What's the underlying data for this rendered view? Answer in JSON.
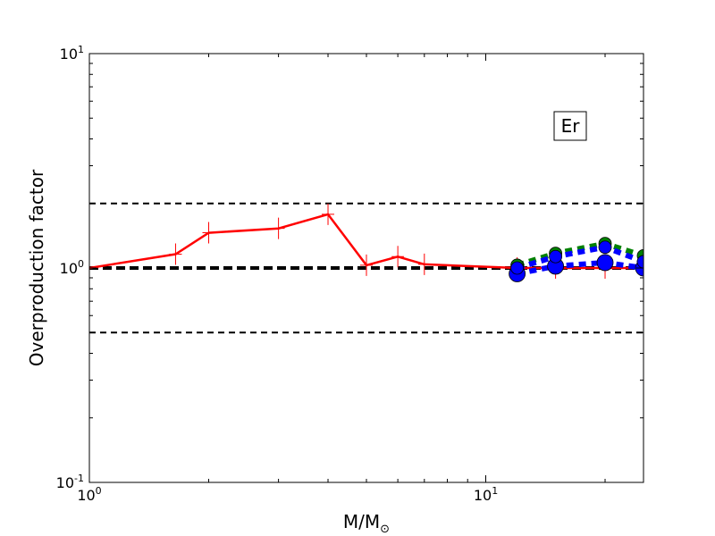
{
  "chart_data": {
    "type": "line",
    "xscale": "log",
    "yscale": "log",
    "xlim": [
      1,
      25
    ],
    "ylim": [
      0.1,
      10
    ],
    "xlabel": "M/M",
    "xlabel_sub": "⊙",
    "ylabel": "Overproduction factor",
    "x_ticks": [
      {
        "value": 1,
        "base": "10",
        "exp": "0"
      },
      {
        "value": 10,
        "base": "10",
        "exp": "1"
      }
    ],
    "y_ticks": [
      {
        "value": 0.1,
        "base": "10",
        "exp": "-1"
      },
      {
        "value": 1,
        "base": "10",
        "exp": "0"
      },
      {
        "value": 10,
        "base": "10",
        "exp": "1"
      }
    ],
    "annotation": "Er",
    "reference_lines": [
      {
        "y": 2.0,
        "style": "dashed",
        "color": "#000000"
      },
      {
        "y": 1.0,
        "style": "dashed-thick",
        "color": "#000000"
      },
      {
        "y": 0.5,
        "style": "dashed",
        "color": "#000000"
      }
    ],
    "series": [
      {
        "style": "solid",
        "color": "#ff0000",
        "marker": "plus",
        "x": [
          1.0,
          1.65,
          2.0,
          3.0,
          4.0,
          5.0,
          6.0,
          7.0,
          12.0,
          15.0,
          20.0,
          25.0
        ],
        "y": [
          1.0,
          1.16,
          1.46,
          1.53,
          1.78,
          1.03,
          1.13,
          1.04,
          1.0,
          1.0,
          1.0,
          1.0
        ]
      },
      {
        "style": "dotted",
        "color": "#008000",
        "marker": "circle",
        "marker_color": "#008000",
        "x": [
          12.0,
          15.0,
          20.0,
          25.0
        ],
        "y": [
          1.03,
          1.17,
          1.3,
          1.14
        ]
      },
      {
        "style": "dotted",
        "color": "#0000ff",
        "marker": "circle",
        "marker_color": "#0000ff",
        "x": [
          12.0,
          15.0,
          20.0,
          25.0
        ],
        "y": [
          0.94,
          1.02,
          1.06,
          1.0
        ]
      },
      {
        "style": "dotted",
        "color": "#0000ff",
        "marker": "circle",
        "marker_color": "#0000ff",
        "x": [
          12.0,
          15.0,
          20.0,
          25.0
        ],
        "y": [
          1.0,
          1.13,
          1.25,
          1.07
        ]
      }
    ]
  }
}
